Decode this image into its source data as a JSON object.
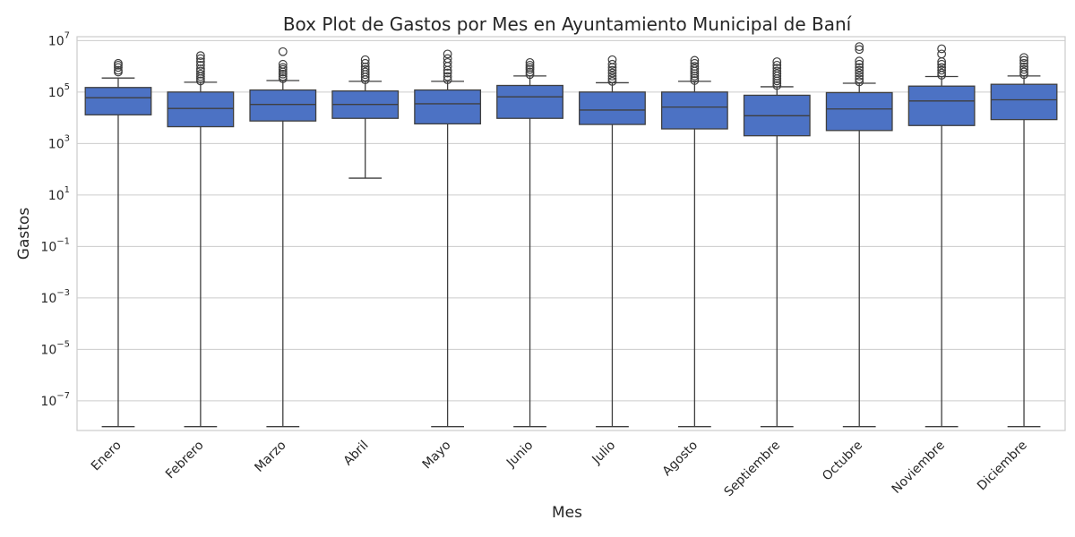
{
  "chart_data": {
    "type": "box",
    "title": "Box Plot de Gastos por Mes en Ayuntamiento Municipal de Baní",
    "xlabel": "Mes",
    "ylabel": "Gastos",
    "yscale": "log",
    "ylim": [
      1e-09,
      30000000.0
    ],
    "ytick_base": "10",
    "ytick_exponents": [
      "7",
      "5",
      "3",
      "1",
      "−1",
      "−3",
      "−5",
      "−7"
    ],
    "yticks": [
      10000000.0,
      100000.0,
      1000.0,
      10.0,
      0.1,
      0.001,
      1e-05,
      1e-07
    ],
    "grid": true,
    "box_color": "#4c72c4",
    "edge_color": "#3f3f3f",
    "categories": [
      "Enero",
      "Febrero",
      "Marzo",
      "Abril",
      "Mayo",
      "Junio",
      "Julio",
      "Agosto",
      "Septiembre",
      "Octubre",
      "Noviembre",
      "Diciembre"
    ],
    "boxes": [
      {
        "whislo": 1e-08,
        "q1": 13000,
        "med": 60000,
        "q3": 150000,
        "whishi": 350000,
        "fliers": [
          600000,
          700000,
          900000,
          1100000,
          1300000
        ]
      },
      {
        "whislo": 1e-08,
        "q1": 4500,
        "med": 23000,
        "q3": 100000,
        "whishi": 240000,
        "fliers": [
          270000,
          330000,
          400000,
          500000,
          650000,
          800000,
          1100000,
          1500000,
          2000000,
          2600000
        ]
      },
      {
        "whislo": 1e-08,
        "q1": 7500,
        "med": 33000,
        "q3": 120000,
        "whishi": 280000,
        "fliers": [
          330000,
          400000,
          500000,
          600000,
          750000,
          900000,
          1200000,
          3700000
        ]
      },
      {
        "whislo": 45,
        "q1": 9500,
        "med": 33000,
        "q3": 110000,
        "whishi": 260000,
        "fliers": [
          300000,
          380000,
          480000,
          600000,
          750000,
          950000,
          1300000,
          1800000
        ]
      },
      {
        "whislo": 1e-08,
        "q1": 5800,
        "med": 35000,
        "q3": 120000,
        "whishi": 260000,
        "fliers": [
          300000,
          400000,
          550000,
          700000,
          1000000,
          1400000,
          2000000,
          3000000
        ]
      },
      {
        "whislo": 1e-08,
        "q1": 9500,
        "med": 65000,
        "q3": 180000,
        "whishi": 420000,
        "fliers": [
          480000,
          600000,
          750000,
          900000,
          1100000,
          1400000
        ]
      },
      {
        "whislo": 1e-08,
        "q1": 5500,
        "med": 20000,
        "q3": 100000,
        "whishi": 230000,
        "fliers": [
          260000,
          330000,
          420000,
          550000,
          700000,
          900000,
          1200000,
          1800000
        ]
      },
      {
        "whislo": 1e-08,
        "q1": 3700,
        "med": 26000,
        "q3": 100000,
        "whishi": 260000,
        "fliers": [
          280000,
          340000,
          420000,
          520000,
          650000,
          800000,
          1000000,
          1300000,
          1700000
        ]
      },
      {
        "whislo": 1e-08,
        "q1": 2000,
        "med": 12000,
        "q3": 75000,
        "whishi": 160000,
        "fliers": [
          180000,
          220000,
          270000,
          330000,
          420000,
          520000,
          650000,
          850000,
          1100000,
          1500000
        ]
      },
      {
        "whislo": 1e-08,
        "q1": 3200,
        "med": 22000,
        "q3": 95000,
        "whishi": 220000,
        "fliers": [
          250000,
          320000,
          420000,
          550000,
          700000,
          900000,
          1200000,
          1600000,
          4500000,
          5800000
        ]
      },
      {
        "whislo": 1e-08,
        "q1": 5000,
        "med": 45000,
        "q3": 170000,
        "whishi": 400000,
        "fliers": [
          450000,
          550000,
          700000,
          900000,
          1200000,
          1500000,
          3000000,
          4800000
        ]
      },
      {
        "whislo": 1e-08,
        "q1": 8500,
        "med": 50000,
        "q3": 200000,
        "whishi": 420000,
        "fliers": [
          480000,
          600000,
          750000,
          950000,
          1300000,
          1700000,
          2200000
        ]
      }
    ]
  }
}
